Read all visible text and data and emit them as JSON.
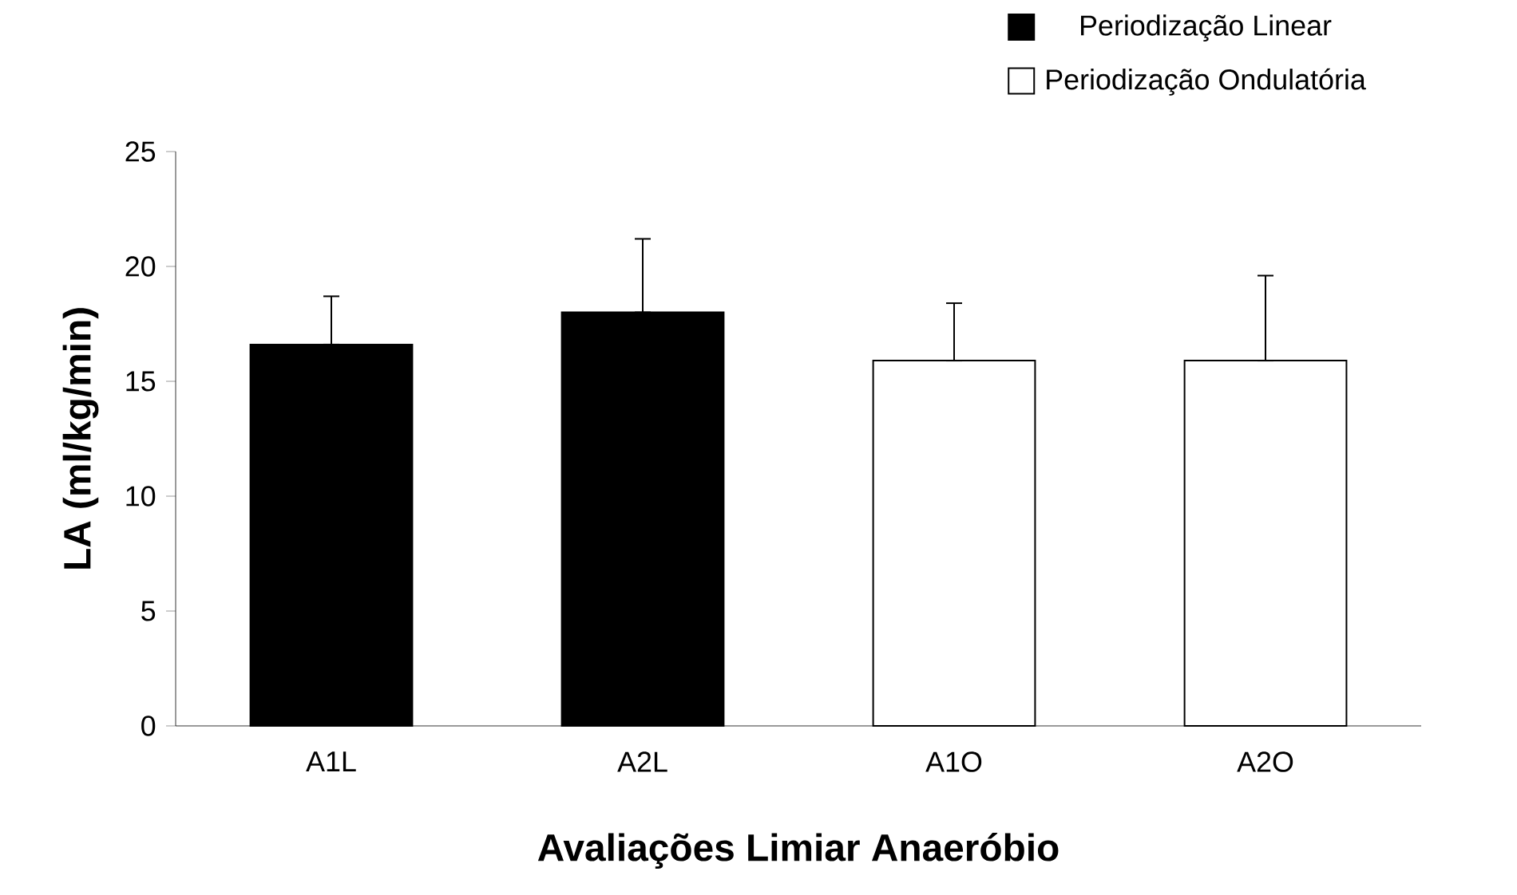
{
  "chart_data": {
    "type": "bar",
    "xlabel": "Avaliações Limiar Anaeróbio",
    "ylabel": "LA (ml/kg/min)",
    "categories": [
      "A1L",
      "A2L",
      "A1O",
      "A2O"
    ],
    "series": [
      {
        "name": "Periodização Linear",
        "color": "#000000",
        "values": [
          16.6,
          18.0,
          null,
          null
        ],
        "errors": [
          [
            16.6,
            18.7
          ],
          [
            18.0,
            21.2
          ],
          null,
          null
        ]
      },
      {
        "name": "Periodização Ondulatória",
        "color": "#ffffff",
        "values": [
          null,
          null,
          15.9,
          15.9
        ],
        "errors": [
          null,
          null,
          [
            15.9,
            18.4
          ],
          [
            15.9,
            19.6
          ]
        ]
      }
    ],
    "ylim": [
      0,
      25
    ],
    "yticks": [
      0,
      5,
      10,
      15,
      20,
      25
    ],
    "legend": "top right"
  }
}
